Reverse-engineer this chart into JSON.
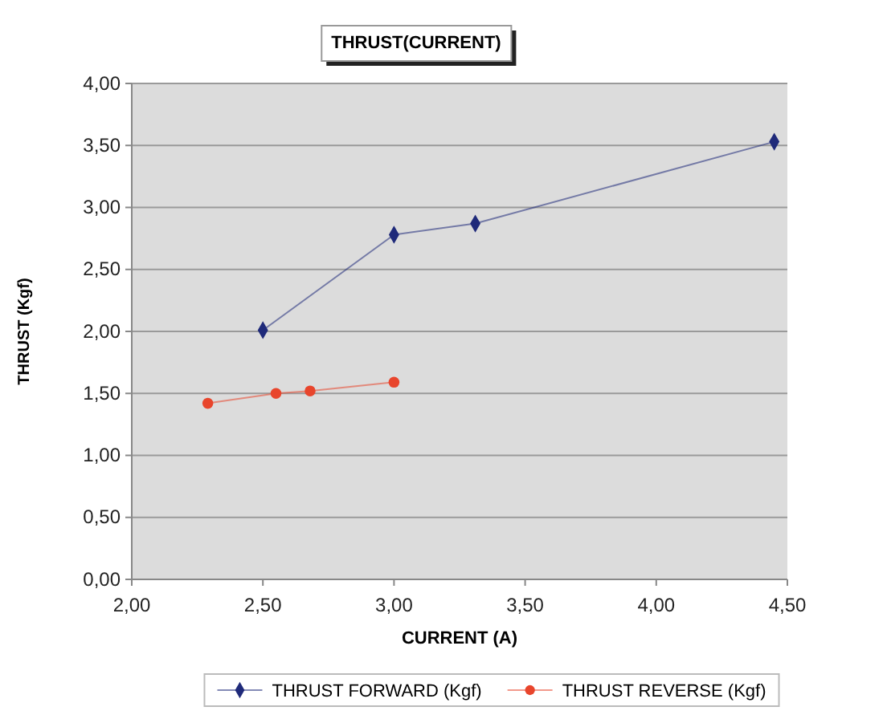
{
  "chart_data": {
    "type": "line",
    "title": "THRUST(CURRENT)",
    "xlabel": "CURRENT (A)",
    "ylabel": "THRUST (Kgf)",
    "xlim": [
      2,
      4.5
    ],
    "xticks": [
      {
        "value": 2,
        "label": "2,00"
      },
      {
        "value": 2.5,
        "label": "2,50"
      },
      {
        "value": 3,
        "label": "3,00"
      },
      {
        "value": 3.5,
        "label": "3,50"
      },
      {
        "value": 4,
        "label": "4,00"
      },
      {
        "value": 4.5,
        "label": "4,50"
      }
    ],
    "ylim": [
      0,
      4
    ],
    "yticks": [
      {
        "value": 0,
        "label": "0,00"
      },
      {
        "value": 0.5,
        "label": "0,50"
      },
      {
        "value": 1,
        "label": "1,00"
      },
      {
        "value": 1.5,
        "label": "1,50"
      },
      {
        "value": 2,
        "label": "2,00"
      },
      {
        "value": 2.5,
        "label": "2,50"
      },
      {
        "value": 3,
        "label": "3,00"
      },
      {
        "value": 3.5,
        "label": "3,50"
      },
      {
        "value": 4,
        "label": "4,00"
      }
    ],
    "grid": "y",
    "legend": "bottom",
    "series": [
      {
        "name": "THRUST FORWARD (Kgf)",
        "color": "#1f2a7a",
        "marker": "diamond",
        "x": [
          2.5,
          3,
          3.31,
          4.45
        ],
        "values": [
          2.01,
          2.78,
          2.87,
          3.53
        ]
      },
      {
        "name": "THRUST REVERSE (Kgf)",
        "color": "#e8452c",
        "marker": "circle",
        "x": [
          2.29,
          2.55,
          2.68,
          3
        ],
        "values": [
          1.42,
          1.5,
          1.52,
          1.59
        ]
      }
    ]
  }
}
